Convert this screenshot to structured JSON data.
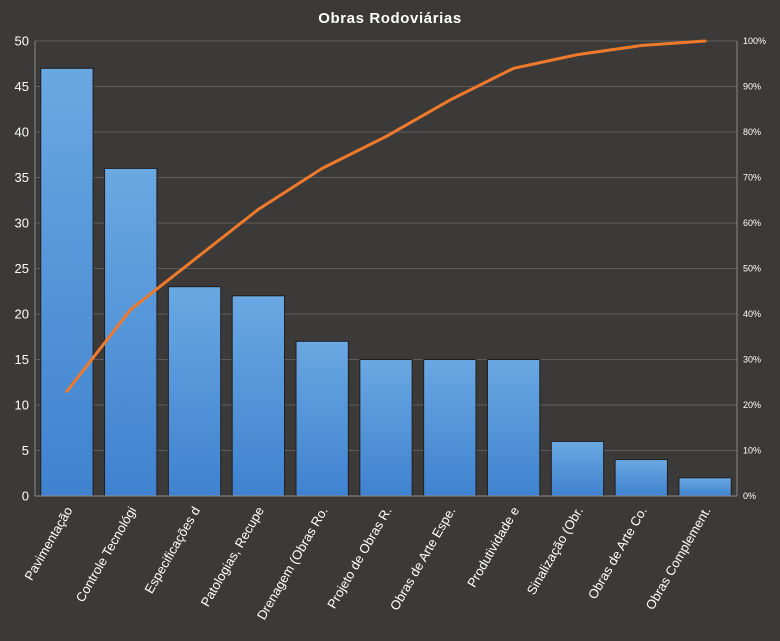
{
  "chart_data": {
    "type": "bar",
    "title": "Obras Rodoviárias",
    "categories": [
      "Pavimentação",
      "Controle Tecnológi",
      "Especificações d",
      "Patologias, Recupe",
      "Drenagem (Obras Ro.",
      "Projeto de Obras R.",
      "Obras de Arte Espe.",
      "Produtividade  e",
      "Sinalização (Obr.",
      "Obras de Arte Co.",
      "Obras Complement."
    ],
    "values": [
      47,
      36,
      23,
      22,
      17,
      15,
      15,
      15,
      6,
      4,
      2
    ],
    "cumulative_percent": [
      23,
      41,
      52,
      63,
      72,
      79,
      87,
      94,
      97,
      99,
      100
    ],
    "ylim": [
      0,
      50
    ],
    "yticks": [
      "0",
      "5",
      "10",
      "15",
      "20",
      "25",
      "30",
      "35",
      "40",
      "45",
      "50"
    ],
    "y2lim": [
      0,
      100
    ],
    "y2ticks": [
      "0%",
      "10%",
      "20%",
      "30%",
      "40%",
      "50%",
      "60%",
      "70%",
      "80%",
      "90%",
      "100%"
    ],
    "grid": true,
    "legend": "none",
    "colors": {
      "background": "#3b3a39",
      "bar_top": "#6aa8e2",
      "bar_bottom": "#3f82cf",
      "line": "#ef7a2c",
      "grid": "#5e5d5b",
      "text": "#ffffff"
    }
  }
}
